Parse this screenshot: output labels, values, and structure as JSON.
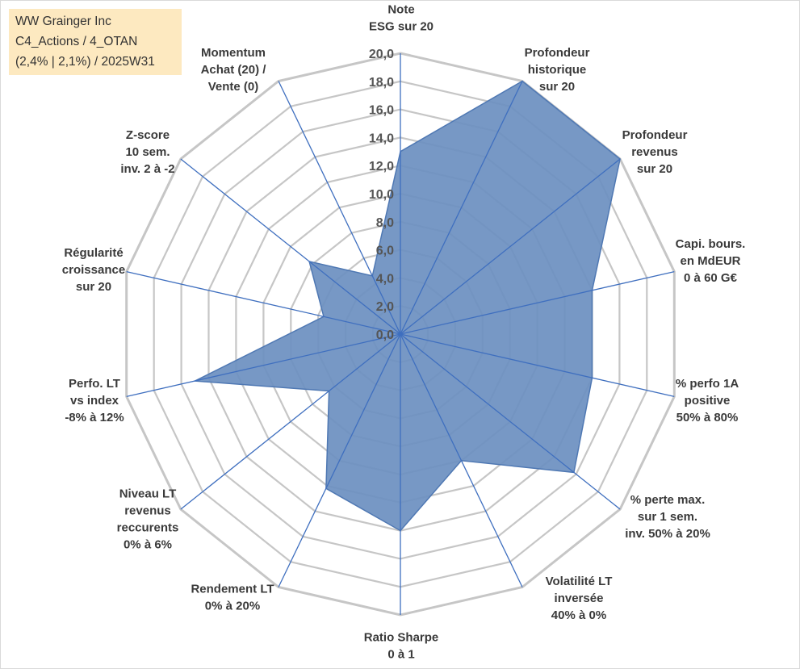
{
  "info": {
    "line1": "WW Grainger Inc",
    "line2": "C4_Actions / 4_OTAN",
    "line3": "(2,4% | 2,1%) / 2025W31"
  },
  "chart_data": {
    "type": "radar",
    "range": [
      0,
      20
    ],
    "ticks": [
      "0,0",
      "2,0",
      "4,0",
      "6,0",
      "8,0",
      "10,0",
      "12,0",
      "14,0",
      "16,0",
      "18,0",
      "20,0"
    ],
    "axes": [
      {
        "label": [
          "Note",
          "ESG sur 20"
        ],
        "value": 13.0
      },
      {
        "label": [
          "Profondeur",
          "historique",
          "sur 20"
        ],
        "value": 20.0
      },
      {
        "label": [
          "Profondeur",
          "revenus",
          "sur 20"
        ],
        "value": 20.0
      },
      {
        "label": [
          "Capi. bours.",
          "en MdEUR",
          "0 à 60 G€"
        ],
        "value": 14.0
      },
      {
        "label": [
          "% perfo 1A",
          "positive",
          "50% à 80%"
        ],
        "value": 14.0
      },
      {
        "label": [
          "% perte max.",
          "sur 1 sem.",
          "inv. 50% à 20%"
        ],
        "value": 15.8
      },
      {
        "label": [
          "Volatilité LT",
          "inversée",
          "40% à 0%"
        ],
        "value": 10.0
      },
      {
        "label": [
          "Ratio Sharpe",
          "0 à 1"
        ],
        "value": 14.0
      },
      {
        "label": [
          "Rendement LT",
          "0% à 20%"
        ],
        "value": 12.2
      },
      {
        "label": [
          "Niveau LT",
          "revenus",
          "reccurents",
          "0% à 6%"
        ],
        "value": 6.5
      },
      {
        "label": [
          "Perfo. LT",
          "vs index",
          "-8% à 12%"
        ],
        "value": 15.0
      },
      {
        "label": [
          "Régularité",
          "croissance",
          "sur 20"
        ],
        "value": 5.6
      },
      {
        "label": [
          "Z-score",
          "10 sem.",
          "inv. 2 à -2"
        ],
        "value": 8.3
      },
      {
        "label": [
          "Momentum",
          "Achat (20) /",
          "Vente (0)"
        ],
        "value": 4.6
      }
    ],
    "colors": {
      "fill": "#6b8fc0",
      "stroke": "#4f78b3",
      "axis": "#3f6fbf",
      "grid": "#c6c6c6",
      "text": "#3a3a3a"
    }
  }
}
